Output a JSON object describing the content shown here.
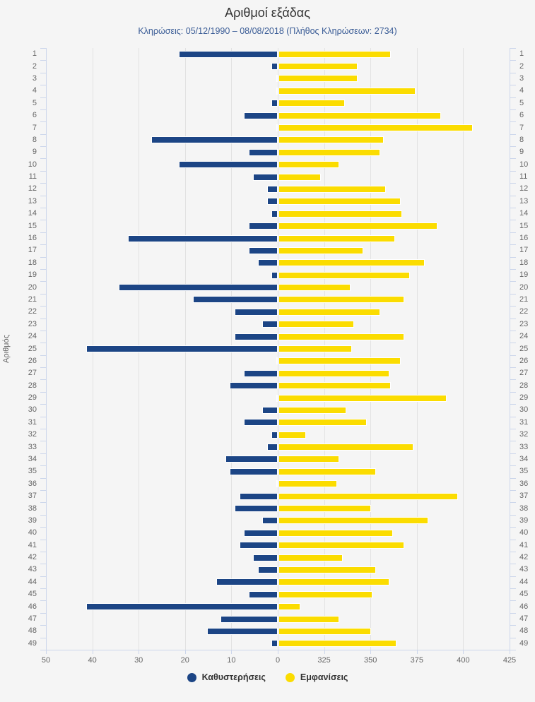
{
  "title": "Αριθμοί εξάδας",
  "subtitle": "Κληρώσεις: 05/12/1990 – 08/08/2018 (Πλήθος Κληρώσεων: 2734)",
  "y_axis_title": "Αριθμός",
  "legend": {
    "items": [
      {
        "label": "Καθυστερήσεις",
        "color": "#1c4585"
      },
      {
        "label": "Εμφανίσεις",
        "color": "#fbdc00"
      }
    ]
  },
  "chart_data": {
    "type": "bar",
    "orientation": "horizontal-diverging",
    "title": "Αριθμοί εξάδας",
    "subtitle": "Κληρώσεις: 05/12/1990 – 08/08/2018 (Πλήθος Κληρώσεων: 2734)",
    "ylabel": "Αριθμός",
    "grid": true,
    "legend_position": "bottom",
    "categories": [
      1,
      2,
      3,
      4,
      5,
      6,
      7,
      8,
      9,
      10,
      11,
      12,
      13,
      14,
      15,
      16,
      17,
      18,
      19,
      20,
      21,
      22,
      23,
      24,
      25,
      26,
      27,
      28,
      29,
      30,
      31,
      32,
      33,
      34,
      35,
      36,
      37,
      38,
      39,
      40,
      41,
      42,
      43,
      44,
      45,
      46,
      47,
      48,
      49
    ],
    "series": [
      {
        "name": "Καθυστερήσεις",
        "color": "#1c4585",
        "axis": "left",
        "values": [
          21,
          1,
          0,
          0,
          1,
          7,
          0,
          27,
          6,
          21,
          5,
          2,
          2,
          1,
          6,
          32,
          6,
          4,
          1,
          34,
          18,
          9,
          3,
          9,
          41,
          0,
          7,
          10,
          0,
          3,
          7,
          1,
          2,
          11,
          10,
          0,
          8,
          9,
          3,
          7,
          8,
          5,
          4,
          13,
          6,
          41,
          12,
          15,
          1
        ]
      },
      {
        "name": "Εμφανίσεις",
        "color": "#fbdc00",
        "axis": "right",
        "values": [
          360,
          342,
          342,
          373,
          335,
          387,
          404,
          356,
          354,
          332,
          322,
          357,
          365,
          366,
          385,
          362,
          345,
          378,
          370,
          338,
          367,
          354,
          340,
          367,
          339,
          365,
          359,
          360,
          390,
          336,
          347,
          314,
          372,
          332,
          352,
          331,
          396,
          349,
          380,
          361,
          367,
          334,
          352,
          359,
          350,
          311,
          332,
          349,
          363
        ]
      }
    ],
    "x_axis": {
      "left": {
        "min": 0,
        "max": 50,
        "reversed": true,
        "ticks": [
          50,
          40,
          30,
          20,
          10,
          0
        ]
      },
      "right": {
        "min": 300,
        "max": 425,
        "reversed": false,
        "ticks": [
          325,
          350,
          375,
          400,
          425
        ]
      }
    }
  }
}
